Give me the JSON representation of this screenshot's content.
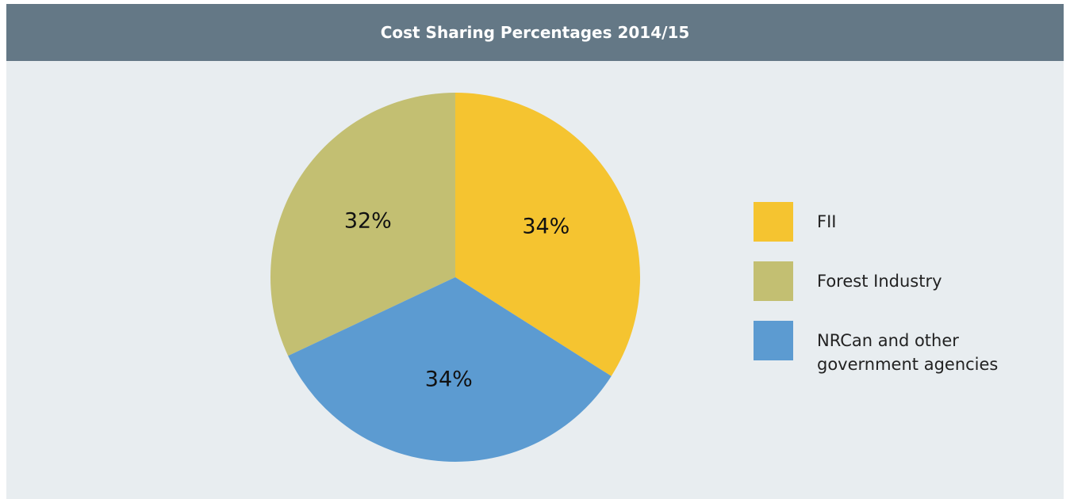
{
  "chart_data": {
    "type": "pie",
    "title": "Cost Sharing Percentages 2014/15",
    "categories": [
      "FII",
      "Forest Industry",
      "NRCan and other government agencies"
    ],
    "values": [
      34,
      32,
      34
    ],
    "value_labels": [
      "34%",
      "32%",
      "34%"
    ],
    "colors": [
      "#f5c430",
      "#c3bf72",
      "#5c9bd1"
    ],
    "legend": "right"
  }
}
